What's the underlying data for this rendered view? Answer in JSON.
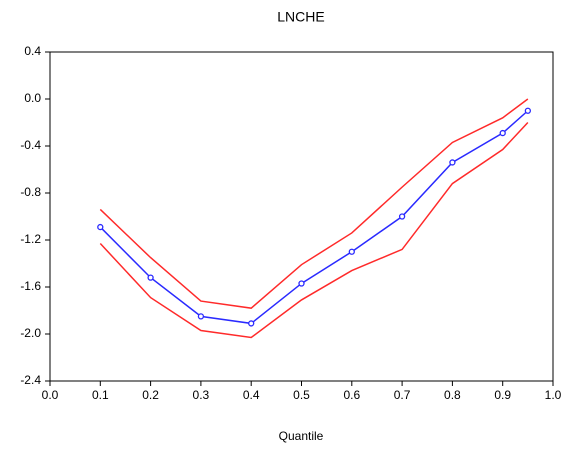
{
  "chart_data": {
    "type": "line",
    "title": "LNCHE",
    "x_label": "Quantile",
    "x": [
      0.1,
      0.2,
      0.3,
      0.4,
      0.5,
      0.6,
      0.7,
      0.8,
      0.9,
      0.95
    ],
    "series": [
      {
        "color": "#ff2a2a",
        "markers": false,
        "values": [
          -0.94,
          -1.35,
          -1.72,
          -1.78,
          -1.41,
          -1.14,
          -0.75,
          -0.37,
          -0.16,
          0.0
        ]
      },
      {
        "color": "#2a2aff",
        "markers": true,
        "values": [
          -1.09,
          -1.52,
          -1.85,
          -1.91,
          -1.57,
          -1.3,
          -1.0,
          -0.54,
          -0.29,
          -0.1
        ]
      },
      {
        "color": "#ff2a2a",
        "markers": false,
        "values": [
          -1.23,
          -1.69,
          -1.97,
          -2.03,
          -1.71,
          -1.46,
          -1.28,
          -0.72,
          -0.43,
          -0.2
        ]
      }
    ],
    "xlim": [
      0.0,
      1.0
    ],
    "xticks": [
      {
        "value": 0.0,
        "label": "0.0"
      },
      0.1,
      0.2,
      0.3,
      0.4,
      0.5,
      0.6,
      0.7,
      0.8,
      0.9,
      {
        "value": 1.0,
        "label": "1.0"
      }
    ],
    "ylim": [
      -2.4,
      0.4
    ],
    "yticks": [
      -2.4,
      {
        "value": -2.0,
        "label": "-2.0"
      },
      -1.6,
      -1.2,
      -0.8,
      -0.4,
      {
        "value": 0.0,
        "label": "0.0"
      },
      0.4
    ],
    "grid": false
  }
}
